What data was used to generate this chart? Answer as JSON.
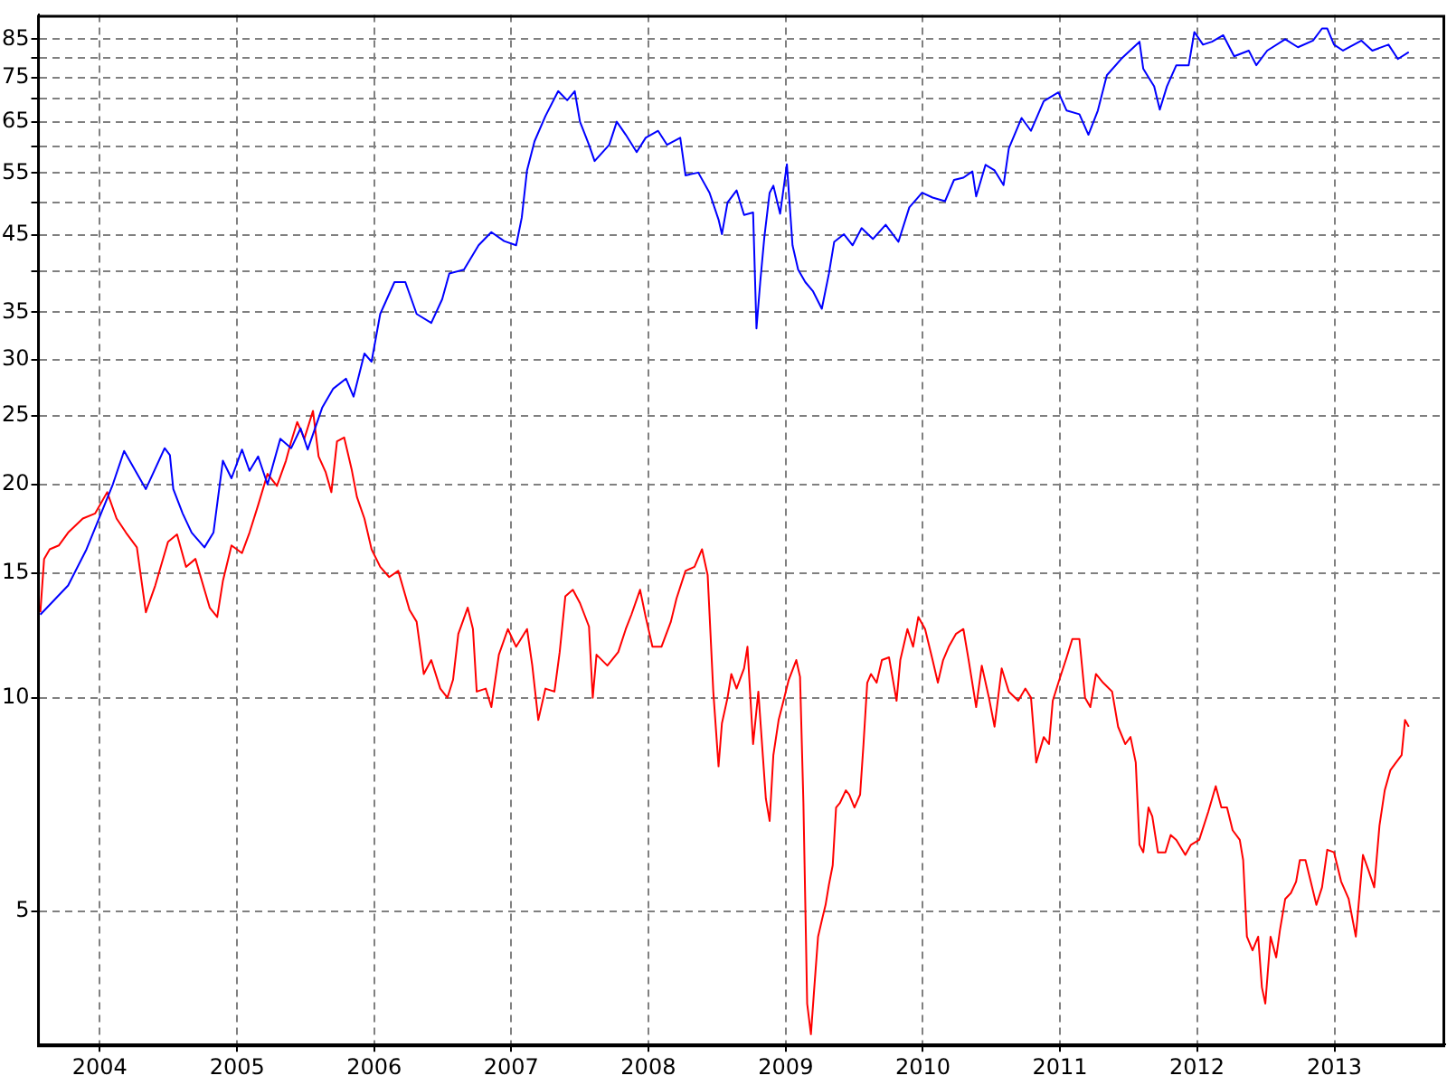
{
  "chart_data": {
    "type": "line",
    "log": "y",
    "grid": true,
    "legend": false,
    "marker": "none",
    "line_style": "solid",
    "xlim": [
      "2003-07-22",
      "2013-10-23"
    ],
    "xticks": [
      {
        "value": "2004-01-01",
        "label": "2004"
      },
      {
        "value": "2005-01-01",
        "label": "2005"
      },
      {
        "value": "2006-01-01",
        "label": "2006"
      },
      {
        "value": "2007-01-01",
        "label": "2007"
      },
      {
        "value": "2008-01-01",
        "label": "2008"
      },
      {
        "value": "2009-01-01",
        "label": "2009"
      },
      {
        "value": "2010-01-01",
        "label": "2010"
      },
      {
        "value": "2011-01-01",
        "label": "2011"
      },
      {
        "value": "2012-01-01",
        "label": "2012"
      },
      {
        "value": "2013-01-01",
        "label": "2013"
      }
    ],
    "ylim": [
      3.24,
      92
    ],
    "yticks": [
      5,
      10,
      15,
      20,
      25,
      30,
      35,
      {
        "value": 40,
        "label": null
      },
      45,
      {
        "value": 50,
        "label": null
      },
      55,
      {
        "value": 60,
        "label": null
      },
      65,
      {
        "value": 70,
        "label": null
      },
      75,
      {
        "value": 80,
        "label": null
      },
      85
    ],
    "series": [
      {
        "color": "#0000ff",
        "x": [
          "2003-07-27",
          "2003-10-09",
          "2003-11-27",
          "2004-02-05",
          "2004-03-06",
          "2004-05-03",
          "2004-06-22",
          "2004-07-06",
          "2004-07-15",
          "2004-08-09",
          "2004-09-02",
          "2004-10-06",
          "2004-10-30",
          "2004-11-24",
          "2004-12-17",
          "2005-01-14",
          "2005-02-03",
          "2005-02-26",
          "2005-03-23",
          "2005-04-26",
          "2005-05-25",
          "2005-06-19",
          "2005-07-08",
          "2005-08-16",
          "2005-09-14",
          "2005-10-18",
          "2005-11-07",
          "2005-12-06",
          "2005-12-25",
          "2006-01-17",
          "2006-02-24",
          "2006-03-25",
          "2006-04-24",
          "2006-06-02",
          "2006-07-01",
          "2006-07-20",
          "2006-08-28",
          "2006-10-06",
          "2006-11-09",
          "2006-12-13",
          "2007-01-14",
          "2007-01-29",
          "2007-02-12",
          "2007-03-04",
          "2007-04-02",
          "2007-05-06",
          "2007-05-30",
          "2007-06-19",
          "2007-07-03",
          "2007-07-27",
          "2007-08-11",
          "2007-09-19",
          "2007-10-09",
          "2007-11-02",
          "2007-12-01",
          "2007-12-25",
          "2008-01-27",
          "2008-02-20",
          "2008-03-26",
          "2008-04-09",
          "2008-05-13",
          "2008-06-12",
          "2008-07-06",
          "2008-07-15",
          "2008-07-30",
          "2008-08-23",
          "2008-09-12",
          "2008-10-06",
          "2008-10-15",
          "2008-10-25",
          "2008-11-05",
          "2008-11-19",
          "2008-11-29",
          "2008-12-17",
          "2009-01-04",
          "2009-01-19",
          "2009-02-03",
          "2009-02-22",
          "2009-03-14",
          "2009-04-07",
          "2009-04-26",
          "2009-05-10",
          "2009-06-05",
          "2009-06-28",
          "2009-07-22",
          "2009-08-21",
          "2009-09-24",
          "2009-10-28",
          "2009-11-26",
          "2009-12-30",
          "2010-01-27",
          "2010-03-01",
          "2010-03-25",
          "2010-04-19",
          "2010-05-13",
          "2010-05-23",
          "2010-06-17",
          "2010-07-11",
          "2010-08-04",
          "2010-08-18",
          "2010-09-21",
          "2010-10-16",
          "2010-11-19",
          "2010-12-28",
          "2011-01-19",
          "2011-02-22",
          "2011-03-18",
          "2011-04-12",
          "2011-05-06",
          "2011-06-14",
          "2011-08-01",
          "2011-08-11",
          "2011-09-09",
          "2011-09-24",
          "2011-10-13",
          "2011-11-07",
          "2011-12-10",
          "2011-12-25",
          "2012-01-17",
          "2012-02-10",
          "2012-03-11",
          "2012-04-09",
          "2012-05-18",
          "2012-06-07",
          "2012-07-06",
          "2012-08-23",
          "2012-09-26",
          "2012-11-05",
          "2012-11-29",
          "2012-12-13",
          "2012-12-31",
          "2013-01-24",
          "2013-03-14",
          "2013-04-12",
          "2013-05-25",
          "2013-06-19",
          "2013-07-18"
        ],
        "values": [
          13.1,
          14.4,
          16.2,
          20,
          22.3,
          19.7,
          22.5,
          22.0,
          19.7,
          18.2,
          17.1,
          16.3,
          17.1,
          21.6,
          20.4,
          22.4,
          20.9,
          21.9,
          20.0,
          23.2,
          22.5,
          24.0,
          22.4,
          25.7,
          27.3,
          28.2,
          26.6,
          30.6,
          29.8,
          34.8,
          38.6,
          38.6,
          34.8,
          33.8,
          36.5,
          39.7,
          40.2,
          43.5,
          45.4,
          44.1,
          43.5,
          47.6,
          55.5,
          61,
          66.2,
          71.8,
          69.7,
          71.8,
          65,
          60.3,
          57.2,
          60.3,
          65,
          62.3,
          58.9,
          61.7,
          63.1,
          60.3,
          61.7,
          54.6,
          55.1,
          51.6,
          47.3,
          45.1,
          50.0,
          52.0,
          48,
          48.4,
          33.2,
          38.6,
          44.7,
          51.6,
          52.8,
          48.2,
          56.6,
          43.5,
          40.2,
          38.6,
          37.5,
          35.4,
          39.7,
          44.0,
          45.1,
          43.5,
          46,
          44.4,
          46.5,
          44.0,
          49.2,
          51.6,
          50.8,
          50.2,
          53.8,
          54.2,
          55.3,
          51,
          56.5,
          55.5,
          52.9,
          59.6,
          65.8,
          63.1,
          69.5,
          71.5,
          67.4,
          66.6,
          62.3,
          67.4,
          75.6,
          79.8,
          84.3,
          77.2,
          72.9,
          67.6,
          72.9,
          78.1,
          78.1,
          87,
          83.5,
          84.3,
          86.1,
          80.4,
          81.9,
          78.1,
          81.9,
          85,
          82.8,
          84.6,
          88,
          88,
          83.5,
          81.9,
          84.6,
          81.9,
          83.5,
          79.7,
          81.5
        ]
      },
      {
        "color": "#ff0000",
        "x": [
          "2003-07-27",
          "2003-08-06",
          "2003-08-21",
          "2003-09-14",
          "2003-10-09",
          "2003-11-17",
          "2003-12-20",
          "2004-01-21",
          "2004-02-15",
          "2004-03-11",
          "2004-04-09",
          "2004-05-03",
          "2004-05-28",
          "2004-07-01",
          "2004-07-25",
          "2004-08-18",
          "2004-09-12",
          "2004-10-06",
          "2004-10-20",
          "2004-11-09",
          "2004-11-24",
          "2004-12-17",
          "2005-01-14",
          "2005-02-03",
          "2005-02-26",
          "2005-03-23",
          "2005-04-17",
          "2005-05-11",
          "2005-05-25",
          "2005-06-10",
          "2005-06-29",
          "2005-07-22",
          "2005-08-06",
          "2005-08-25",
          "2005-09-09",
          "2005-09-24",
          "2005-10-13",
          "2005-11-02",
          "2005-11-16",
          "2005-12-06",
          "2005-12-25",
          "2006-01-17",
          "2006-02-10",
          "2006-03-06",
          "2006-04-05",
          "2006-04-24",
          "2006-05-13",
          "2006-06-02",
          "2006-06-26",
          "2006-07-15",
          "2006-07-30",
          "2006-08-13",
          "2006-09-07",
          "2006-09-21",
          "2006-10-01",
          "2006-10-25",
          "2006-11-09",
          "2006-11-29",
          "2006-12-23",
          "2007-01-14",
          "2007-02-12",
          "2007-02-26",
          "2007-03-14",
          "2007-04-02",
          "2007-04-26",
          "2007-05-10",
          "2007-05-25",
          "2007-06-14",
          "2007-07-03",
          "2007-07-27",
          "2007-08-06",
          "2007-08-16",
          "2007-09-14",
          "2007-10-13",
          "2007-11-02",
          "2007-11-17",
          "2007-12-10",
          "2007-12-25",
          "2008-01-12",
          "2008-02-05",
          "2008-03-01",
          "2008-03-16",
          "2008-04-09",
          "2008-05-03",
          "2008-05-23",
          "2008-06-07",
          "2008-06-22",
          "2008-07-06",
          "2008-07-15",
          "2008-07-30",
          "2008-08-09",
          "2008-08-23",
          "2008-09-12",
          "2008-09-21",
          "2008-10-06",
          "2008-10-20",
          "2008-11-09",
          "2008-11-19",
          "2008-11-29",
          "2008-12-13",
          "2008-12-28",
          "2009-01-09",
          "2009-01-29",
          "2009-02-08",
          "2009-02-17",
          "2009-02-27",
          "2009-03-09",
          "2009-03-18",
          "2009-03-28",
          "2009-04-07",
          "2009-04-17",
          "2009-04-26",
          "2009-05-06",
          "2009-05-15",
          "2009-05-25",
          "2009-06-10",
          "2009-06-19",
          "2009-07-03",
          "2009-07-18",
          "2009-07-27",
          "2009-08-06",
          "2009-08-16",
          "2009-08-31",
          "2009-09-14",
          "2009-10-03",
          "2009-10-23",
          "2009-11-02",
          "2009-11-21",
          "2009-12-06",
          "2009-12-20",
          "2010-01-07",
          "2010-01-27",
          "2010-02-10",
          "2010-02-24",
          "2010-03-11",
          "2010-03-30",
          "2010-04-19",
          "2010-05-03",
          "2010-05-23",
          "2010-06-07",
          "2010-06-26",
          "2010-07-11",
          "2010-07-30",
          "2010-08-18",
          "2010-09-12",
          "2010-10-01",
          "2010-10-16",
          "2010-10-30",
          "2010-11-19",
          "2010-12-03",
          "2010-12-13",
          "2010-12-28",
          "2011-01-19",
          "2011-02-03",
          "2011-02-22",
          "2011-03-09",
          "2011-03-23",
          "2011-04-07",
          "2011-04-26",
          "2011-05-20",
          "2011-06-05",
          "2011-06-24",
          "2011-07-08",
          "2011-07-22",
          "2011-08-01",
          "2011-08-11",
          "2011-08-25",
          "2011-09-04",
          "2011-09-19",
          "2011-10-09",
          "2011-10-23",
          "2011-11-07",
          "2011-12-01",
          "2011-12-16",
          "2012-01-07",
          "2012-01-31",
          "2012-02-20",
          "2012-03-06",
          "2012-03-21",
          "2012-04-05",
          "2012-04-24",
          "2012-05-03",
          "2012-05-13",
          "2012-05-28",
          "2012-06-12",
          "2012-06-22",
          "2012-07-01",
          "2012-07-15",
          "2012-07-30",
          "2012-08-09",
          "2012-08-23",
          "2012-09-07",
          "2012-09-21",
          "2012-10-01",
          "2012-10-16",
          "2012-10-30",
          "2012-11-14",
          "2012-11-29",
          "2012-12-13",
          "2012-12-31",
          "2013-01-19",
          "2013-02-08",
          "2013-02-27",
          "2013-03-18",
          "2013-04-02",
          "2013-04-17",
          "2013-05-01",
          "2013-05-15",
          "2013-05-30",
          "2013-06-14",
          "2013-06-29",
          "2013-07-08",
          "2013-07-18"
        ],
        "values": [
          13.2,
          15.7,
          16.2,
          16.4,
          17.1,
          17.9,
          18.2,
          19.5,
          17.9,
          17.1,
          16.3,
          13.2,
          14.4,
          16.6,
          17.0,
          15.3,
          15.7,
          14.2,
          13.4,
          13.0,
          14.6,
          16.4,
          16.0,
          17.1,
          18.7,
          20.7,
          19.9,
          21.6,
          23.0,
          24.5,
          23.2,
          25.4,
          21.9,
          20.8,
          19.5,
          23.0,
          23.3,
          21.0,
          19.2,
          17.9,
          16.2,
          15.3,
          14.8,
          15.1,
          13.3,
          12.8,
          10.8,
          11.3,
          10.3,
          10.0,
          10.6,
          12.3,
          13.4,
          12.5,
          10.2,
          10.3,
          9.7,
          11.5,
          12.5,
          11.8,
          12.5,
          11.1,
          9.3,
          10.3,
          10.2,
          11.6,
          13.9,
          14.2,
          13.6,
          12.6,
          10.0,
          11.5,
          11.1,
          11.6,
          12.5,
          13.1,
          14.2,
          13.0,
          11.8,
          11.8,
          12.8,
          13.8,
          15.1,
          15.3,
          16.2,
          14.9,
          10.2,
          8.0,
          9.2,
          10.0,
          10.8,
          10.3,
          11.0,
          11.8,
          8.6,
          10.2,
          7.2,
          6.7,
          8.3,
          9.3,
          10.0,
          10.6,
          11.3,
          10.7,
          7.1,
          3.7,
          3.35,
          3.9,
          4.6,
          4.85,
          5.1,
          5.45,
          5.8,
          7.0,
          7.1,
          7.4,
          7.3,
          7.0,
          7.3,
          8.6,
          10.5,
          10.8,
          10.5,
          11.3,
          11.4,
          9.9,
          11.3,
          12.5,
          11.8,
          13.0,
          12.5,
          11.3,
          10.5,
          11.3,
          11.8,
          12.3,
          12.5,
          11.3,
          9.7,
          11.1,
          10.0,
          9.1,
          11.0,
          10.2,
          9.9,
          10.3,
          10.0,
          8.1,
          8.8,
          8.6,
          9.9,
          10.5,
          11.4,
          12.1,
          12.1,
          10.0,
          9.7,
          10.8,
          10.5,
          10.2,
          9.1,
          8.6,
          8.8,
          8.1,
          6.2,
          6.05,
          7.0,
          6.8,
          6.05,
          6.05,
          6.4,
          6.3,
          6.0,
          6.2,
          6.3,
          6.9,
          7.5,
          7.0,
          7.0,
          6.5,
          6.3,
          5.9,
          4.6,
          4.4,
          4.6,
          3.9,
          3.7,
          4.6,
          4.3,
          4.7,
          5.2,
          5.3,
          5.5,
          5.9,
          5.9,
          5.5,
          5.1,
          5.4,
          6.1,
          6.05,
          5.5,
          5.2,
          4.6,
          6.0,
          5.7,
          5.4,
          6.6,
          7.4,
          7.9,
          8.1,
          8.3,
          9.3,
          9.1
        ]
      }
    ]
  }
}
